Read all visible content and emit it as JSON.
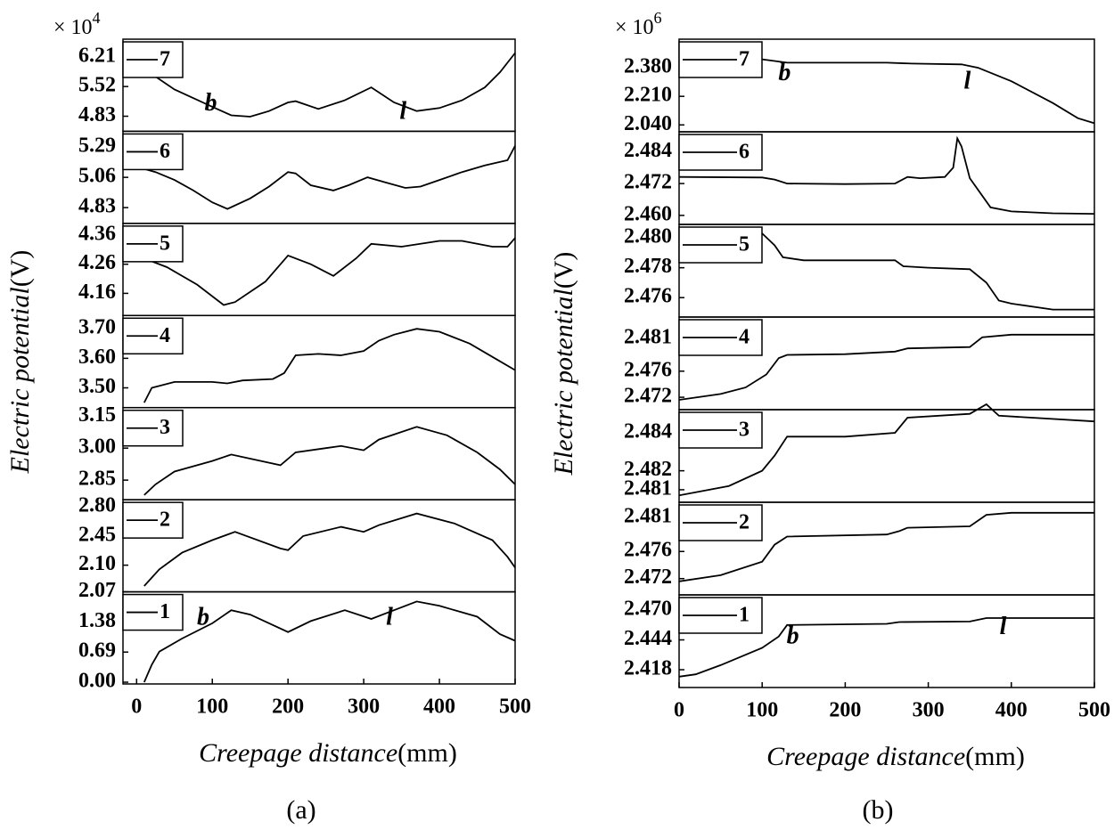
{
  "chart_data": [
    {
      "type": "line",
      "caption": "(a)",
      "scale_base": "× 10",
      "scale_exp": "4",
      "xlabel": "Creepage distance",
      "xlabel_unit": "(mm)",
      "ylabel": "Electric potential",
      "ylabel_unit": "(V)",
      "xlim": [
        -18,
        500
      ],
      "xticks": [
        0,
        100,
        200,
        300,
        400,
        500
      ],
      "subplots": [
        {
          "name": "7",
          "color": "#000000",
          "ylim": [
            4.48,
            6.62
          ],
          "yticks": [
            4.83,
            5.52,
            6.21
          ],
          "x": [
            0,
            25,
            50,
            75,
            100,
            125,
            150,
            175,
            200,
            210,
            240,
            275,
            310,
            340,
            370,
            400,
            430,
            460,
            480,
            500
          ],
          "values": [
            5.95,
            5.75,
            5.45,
            5.25,
            5.05,
            4.85,
            4.82,
            4.95,
            5.15,
            5.18,
            5.0,
            5.2,
            5.5,
            5.15,
            4.95,
            5.02,
            5.2,
            5.5,
            5.85,
            6.3
          ],
          "annotations": [
            {
              "text": "b",
              "x": 98,
              "y": 5.1
            },
            {
              "text": "l",
              "x": 352,
              "y": 4.9
            }
          ]
        },
        {
          "name": "6",
          "color": "#000000",
          "ylim": [
            4.71,
            5.41
          ],
          "yticks": [
            4.83,
            5.06,
            5.29
          ],
          "x": [
            0,
            25,
            50,
            75,
            100,
            120,
            150,
            175,
            200,
            210,
            230,
            260,
            280,
            305,
            330,
            355,
            375,
            400,
            430,
            460,
            490,
            500
          ],
          "values": [
            5.14,
            5.1,
            5.04,
            4.96,
            4.87,
            4.82,
            4.9,
            4.99,
            5.1,
            5.09,
            5.0,
            4.96,
            5.0,
            5.06,
            5.02,
            4.98,
            4.99,
            5.04,
            5.1,
            5.15,
            5.19,
            5.3
          ]
        },
        {
          "name": "5",
          "color": "#000000",
          "ylim": [
            4.084,
            4.4
          ],
          "yticks": [
            4.16,
            4.26,
            4.36
          ],
          "x": [
            0,
            40,
            80,
            115,
            130,
            170,
            200,
            230,
            260,
            290,
            310,
            350,
            400,
            430,
            470,
            490,
            500
          ],
          "values": [
            4.29,
            4.25,
            4.19,
            4.12,
            4.13,
            4.2,
            4.29,
            4.26,
            4.22,
            4.28,
            4.33,
            4.32,
            4.34,
            4.34,
            4.32,
            4.32,
            4.35
          ]
        },
        {
          "name": "4",
          "color": "#000000",
          "ylim": [
            3.433,
            3.745
          ],
          "yticks": [
            {
              "value": 3.5,
              "label": "3.50"
            },
            {
              "value": 3.6,
              "label": "3.60"
            },
            {
              "value": 3.7,
              "label": "3.70"
            }
          ],
          "x": [
            10,
            20,
            50,
            100,
            120,
            140,
            180,
            195,
            210,
            240,
            270,
            300,
            320,
            340,
            370,
            400,
            440,
            480,
            500
          ],
          "values": [
            3.45,
            3.5,
            3.52,
            3.52,
            3.515,
            3.525,
            3.53,
            3.55,
            3.61,
            3.615,
            3.61,
            3.625,
            3.66,
            3.68,
            3.7,
            3.69,
            3.65,
            3.59,
            3.56
          ]
        },
        {
          "name": "3",
          "color": "#000000",
          "ylim": [
            2.758,
            3.19
          ],
          "yticks": [
            2.85,
            {
              "value": 3,
              "label": "3.00"
            },
            3.15
          ],
          "x": [
            10,
            25,
            50,
            100,
            125,
            190,
            210,
            250,
            270,
            300,
            320,
            370,
            410,
            450,
            480,
            500
          ],
          "values": [
            2.78,
            2.83,
            2.89,
            2.94,
            2.97,
            2.92,
            2.98,
            3.0,
            3.01,
            2.99,
            3.04,
            3.1,
            3.06,
            2.98,
            2.9,
            2.83
          ]
        },
        {
          "name": "2",
          "color": "#000000",
          "ylim": [
            1.78,
            2.885
          ],
          "yticks": [
            {
              "value": 2.1,
              "label": "2.10"
            },
            2.45,
            {
              "value": 2.8,
              "label": "2.80"
            }
          ],
          "x": [
            10,
            30,
            60,
            100,
            130,
            190,
            200,
            220,
            270,
            300,
            320,
            370,
            420,
            470,
            490,
            500
          ],
          "values": [
            1.85,
            2.05,
            2.25,
            2.4,
            2.5,
            2.3,
            2.28,
            2.45,
            2.56,
            2.5,
            2.58,
            2.72,
            2.6,
            2.4,
            2.2,
            2.07
          ]
        },
        {
          "name": "1",
          "color": "#000000",
          "ylim": [
            -0.04,
            2.07
          ],
          "yticks": [
            {
              "value": 0,
              "label": "0.00"
            },
            0.69,
            1.38,
            2.07
          ],
          "x": [
            10,
            20,
            30,
            60,
            100,
            125,
            150,
            200,
            230,
            275,
            310,
            340,
            370,
            400,
            450,
            480,
            500
          ],
          "values": [
            0.0,
            0.4,
            0.7,
            1.0,
            1.35,
            1.65,
            1.55,
            1.15,
            1.4,
            1.65,
            1.45,
            1.65,
            1.85,
            1.75,
            1.5,
            1.1,
            0.95
          ],
          "annotations": [
            {
              "text": "b",
              "x": 88,
              "y": 1.45
            },
            {
              "text": "l",
              "x": 334,
              "y": 1.45
            }
          ]
        }
      ]
    },
    {
      "type": "line",
      "caption": "(b)",
      "scale_base": "× 10",
      "scale_exp": "6",
      "xlabel": "Creepage distance",
      "xlabel_unit": "(mm)",
      "ylabel": "Electric potential",
      "ylabel_unit": "(V)",
      "xlim": [
        0,
        500
      ],
      "xticks": [
        0,
        100,
        200,
        300,
        400,
        500
      ],
      "subplots": [
        {
          "name": "7",
          "color": "#000000",
          "ylim": [
            1.999,
            2.55
          ],
          "yticks": [
            {
              "value": 2.04,
              "label": "2.040"
            },
            {
              "value": 2.21,
              "label": "2.210"
            },
            {
              "value": 2.38,
              "label": "2.380"
            }
          ],
          "x": [
            0,
            100,
            130,
            200,
            250,
            280,
            340,
            360,
            400,
            450,
            480,
            500
          ],
          "values": [
            2.45,
            2.43,
            2.41,
            2.41,
            2.41,
            2.405,
            2.4,
            2.38,
            2.3,
            2.17,
            2.08,
            2.05
          ],
          "annotations": [
            {
              "text": "b",
              "x": 127,
              "y": 2.34
            },
            {
              "text": "l",
              "x": 347,
              "y": 2.29
            }
          ]
        },
        {
          "name": "6",
          "color": "#000000",
          "ylim": [
            2.4566,
            2.4915
          ],
          "yticks": [
            {
              "value": 2.46,
              "label": "2.460"
            },
            2.472,
            2.484
          ],
          "x": [
            0,
            100,
            115,
            130,
            200,
            260,
            275,
            290,
            320,
            330,
            335,
            340,
            350,
            375,
            400,
            450,
            500
          ],
          "values": [
            2.4745,
            2.4743,
            2.4735,
            2.472,
            2.4718,
            2.472,
            2.4745,
            2.474,
            2.4745,
            2.478,
            2.489,
            2.486,
            2.474,
            2.463,
            2.4615,
            2.4608,
            2.4606
          ]
        },
        {
          "name": "5",
          "color": "#000000",
          "ylim": [
            2.4747,
            2.4809
          ],
          "yticks": [
            2.476,
            2.478,
            {
              "value": 2.48,
              "label": "2.480"
            }
          ],
          "x": [
            0,
            100,
            115,
            125,
            150,
            260,
            270,
            300,
            350,
            370,
            385,
            400,
            450,
            500
          ],
          "values": [
            2.4804,
            2.4803,
            2.4795,
            2.4787,
            2.4785,
            2.4785,
            2.4781,
            2.478,
            2.4779,
            2.477,
            2.4758,
            2.4756,
            2.4752,
            2.4752
          ]
        },
        {
          "name": "4",
          "color": "#000000",
          "ylim": [
            2.4701,
            2.4843
          ],
          "yticks": [
            2.472,
            2.476,
            2.481
          ],
          "x": [
            0,
            50,
            80,
            105,
            120,
            130,
            200,
            260,
            275,
            350,
            365,
            400,
            500
          ],
          "values": [
            2.4716,
            2.4725,
            2.4735,
            2.4755,
            2.478,
            2.4785,
            2.4786,
            2.479,
            2.4795,
            2.4797,
            2.4812,
            2.4816,
            2.4816
          ]
        },
        {
          "name": "3",
          "color": "#000000",
          "ylim": [
            2.48034,
            2.48522
          ],
          "yticks": [
            2.481,
            2.482,
            2.484
          ],
          "x": [
            0,
            60,
            100,
            115,
            130,
            200,
            260,
            275,
            350,
            370,
            385,
            500
          ],
          "values": [
            2.4807,
            2.4812,
            2.482,
            2.4828,
            2.4838,
            2.4838,
            2.484,
            2.4848,
            2.485,
            2.4855,
            2.4849,
            2.4846
          ]
        },
        {
          "name": "2",
          "color": "#000000",
          "ylim": [
            2.4696,
            2.48325
          ],
          "yticks": [
            2.472,
            2.476,
            2.481
          ],
          "x": [
            0,
            50,
            100,
            115,
            130,
            250,
            265,
            275,
            350,
            370,
            400,
            500
          ],
          "values": [
            2.4716,
            2.4725,
            2.4745,
            2.477,
            2.4782,
            2.4785,
            2.479,
            2.4795,
            2.4797,
            2.4814,
            2.4817,
            2.4817
          ]
        },
        {
          "name": "1",
          "color": "#000000",
          "ylim": [
            2.4025,
            2.4832
          ],
          "yticks": [
            2.418,
            2.444,
            {
              "value": 2.47,
              "label": "2.470"
            }
          ],
          "x": [
            0,
            20,
            50,
            100,
            120,
            130,
            250,
            265,
            350,
            370,
            500
          ],
          "values": [
            2.412,
            2.414,
            2.422,
            2.437,
            2.447,
            2.457,
            2.458,
            2.4595,
            2.46,
            2.463,
            2.463
          ],
          "annotations": [
            {
              "text": "b",
              "x": 137,
              "y": 2.446
            },
            {
              "text": "l",
              "x": 390,
              "y": 2.454
            }
          ]
        }
      ]
    }
  ]
}
